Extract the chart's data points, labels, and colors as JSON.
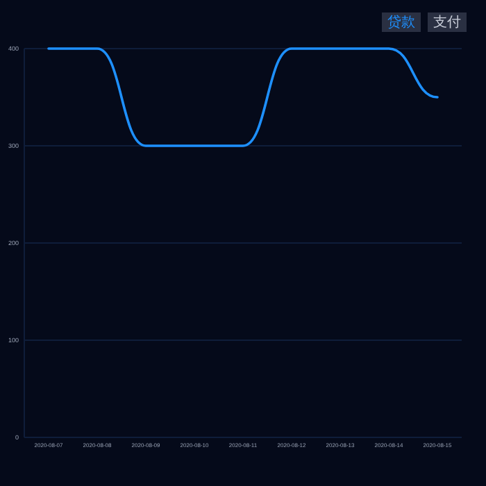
{
  "chart_data": {
    "type": "line",
    "categories": [
      "2020-08-07",
      "2020-08-08",
      "2020-08-09",
      "2020-08-10",
      "2020-08-11",
      "2020-08-12",
      "2020-08-13",
      "2020-08-14",
      "2020-08-15"
    ],
    "series": [
      {
        "color": "#1e90ff",
        "values": [
          400,
          400,
          300,
          300,
          300,
          400,
          400,
          400,
          350
        ]
      }
    ],
    "ylim": [
      0,
      400
    ],
    "yticks": [
      0,
      100,
      200,
      300,
      400
    ],
    "grid": "y",
    "annotations": [
      "贷款",
      "支付"
    ]
  }
}
